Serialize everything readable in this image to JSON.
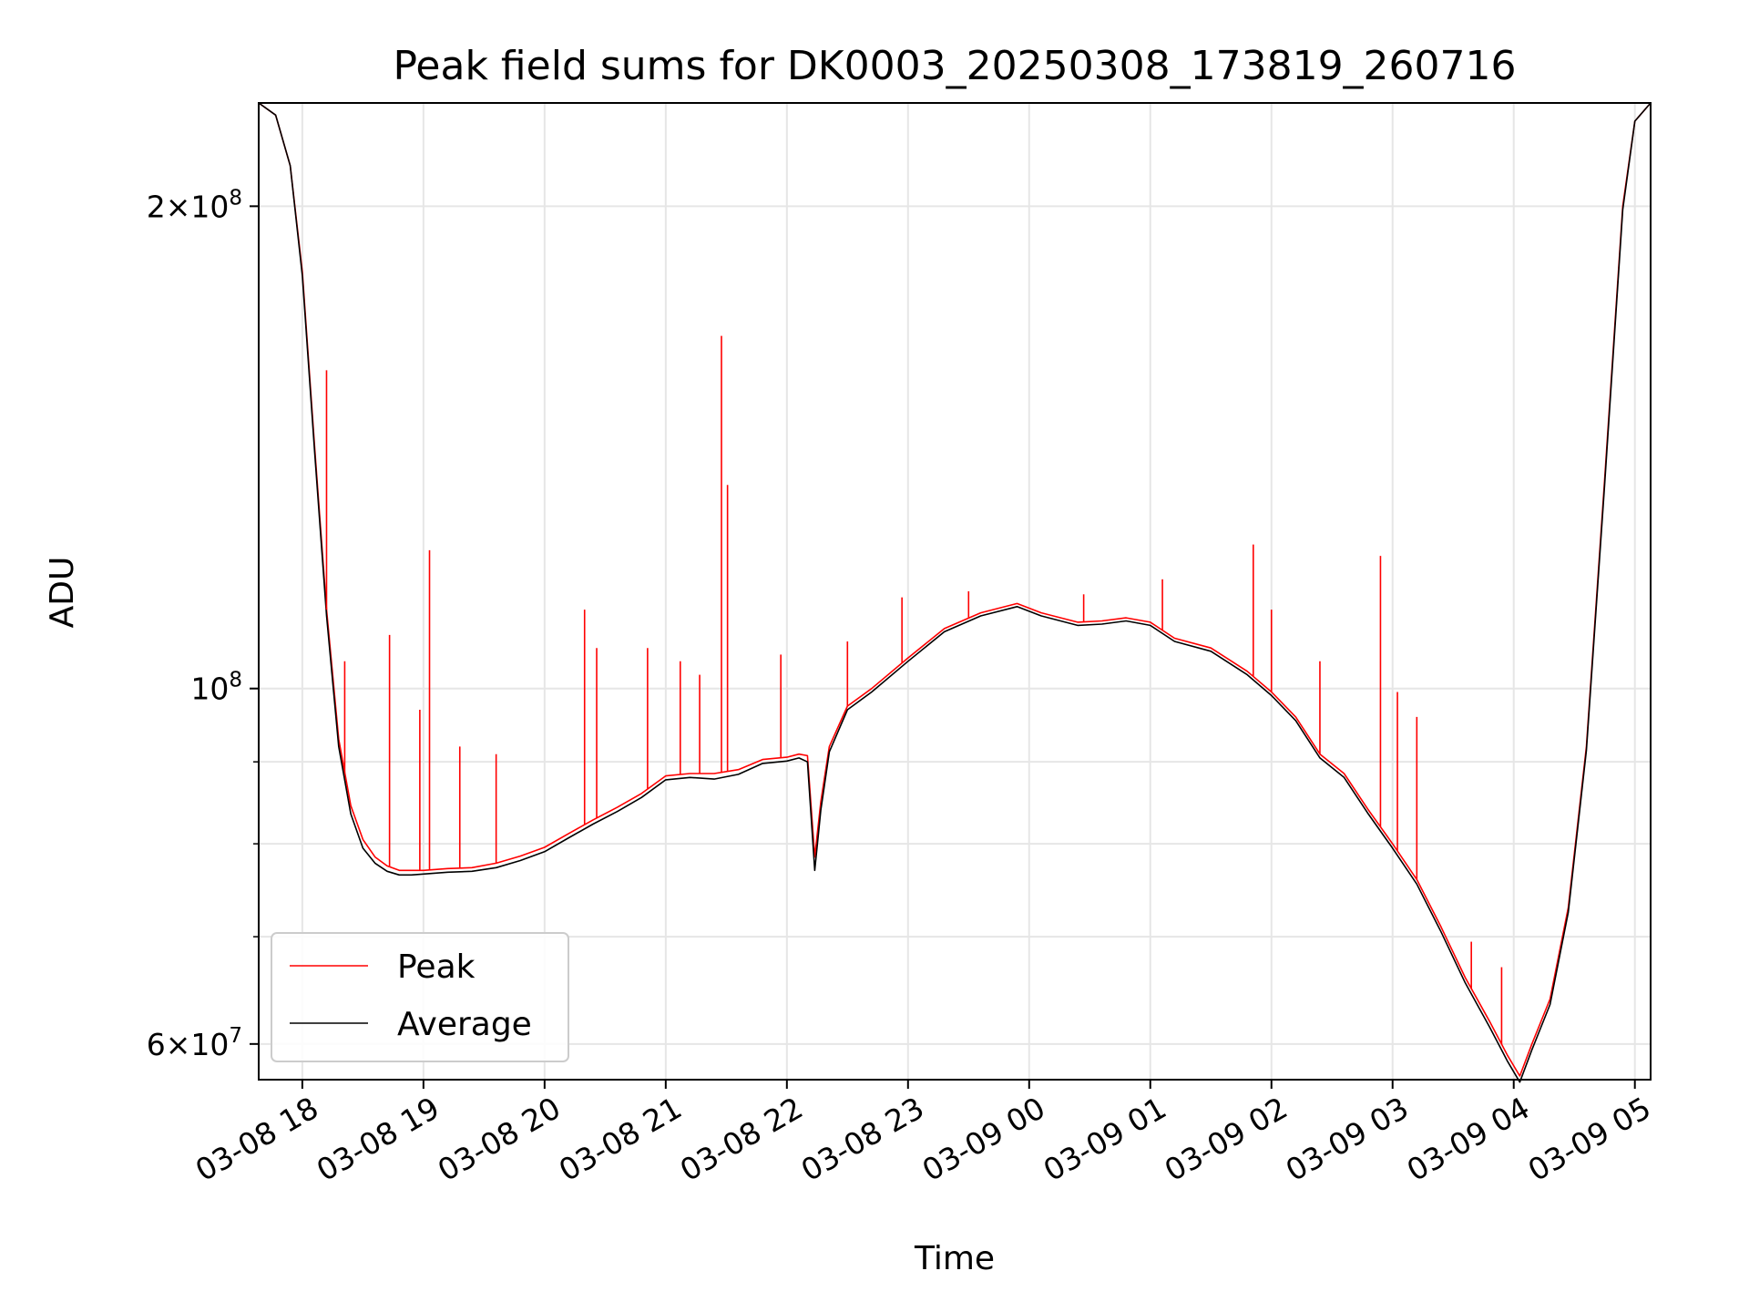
{
  "chart_data": {
    "type": "line",
    "title": "Peak field sums for DK0003_20250308_173819_260716",
    "xlabel": "Time",
    "ylabel": "ADU",
    "yscale": "log",
    "ylim": [
      57000000,
      232000000
    ],
    "xlim_hours": [
      17.64,
      29.13
    ],
    "grid": true,
    "legend_position": "lower-left",
    "x_ticks": [
      {
        "h": 18,
        "label": "03-08 18"
      },
      {
        "h": 19,
        "label": "03-08 19"
      },
      {
        "h": 20,
        "label": "03-08 20"
      },
      {
        "h": 21,
        "label": "03-08 21"
      },
      {
        "h": 22,
        "label": "03-08 22"
      },
      {
        "h": 23,
        "label": "03-08 23"
      },
      {
        "h": 24,
        "label": "03-09 00"
      },
      {
        "h": 25,
        "label": "03-09 01"
      },
      {
        "h": 26,
        "label": "03-09 02"
      },
      {
        "h": 27,
        "label": "03-09 03"
      },
      {
        "h": 28,
        "label": "03-09 04"
      },
      {
        "h": 29,
        "label": "03-09 05"
      }
    ],
    "y_major_ticks": [
      {
        "v": 100000000,
        "base": "10",
        "exp": "8"
      },
      {
        "v": 200000000,
        "base": "2×10",
        "exp": "8"
      },
      {
        "v": 60000000,
        "base": "6×10",
        "exp": "7"
      }
    ],
    "y_minor_ticks": [
      70000000,
      80000000,
      90000000
    ],
    "x_minor_grid": [],
    "series": [
      {
        "name": "Peak",
        "color": "#ff0000",
        "x": [
          17.64,
          17.78,
          17.9,
          18.0,
          18.1,
          18.2,
          18.3,
          18.4,
          18.5,
          18.6,
          18.7,
          18.8,
          18.9,
          19.0,
          19.2,
          19.4,
          19.6,
          19.8,
          20.0,
          20.2,
          20.4,
          20.6,
          20.8,
          21.0,
          21.2,
          21.4,
          21.6,
          21.8,
          22.0,
          22.1,
          22.17,
          22.23,
          22.28,
          22.35,
          22.5,
          22.7,
          23.0,
          23.3,
          23.6,
          23.9,
          24.1,
          24.4,
          24.6,
          24.8,
          25.0,
          25.2,
          25.5,
          25.8,
          26.0,
          26.2,
          26.4,
          26.6,
          26.8,
          27.0,
          27.2,
          27.4,
          27.6,
          27.8,
          27.95,
          28.05,
          28.15,
          28.3,
          28.45,
          28.6,
          28.75,
          28.9,
          29.0,
          29.13
        ],
        "y": [
          232000000,
          228000000,
          212000000,
          182000000,
          142000000,
          112000000,
          93000000,
          84500000,
          80500000,
          78500000,
          77500000,
          77000000,
          77000000,
          77000000,
          77200000,
          77300000,
          77800000,
          78600000,
          79600000,
          81200000,
          82800000,
          84300000,
          86000000,
          88200000,
          88500000,
          88500000,
          89000000,
          90300000,
          90600000,
          91000000,
          90800000,
          78500000,
          85000000,
          92000000,
          97500000,
          100000000,
          104500000,
          109000000,
          111500000,
          113000000,
          111500000,
          110000000,
          110200000,
          110700000,
          110000000,
          107500000,
          106000000,
          102500000,
          99500000,
          96000000,
          91000000,
          88500000,
          84000000,
          80000000,
          76000000,
          71000000,
          66000000,
          62000000,
          59000000,
          57300000,
          60000000,
          64000000,
          73000000,
          92000000,
          135000000,
          200000000,
          226000000,
          232000000
        ]
      },
      {
        "name": "Average",
        "color": "#000000",
        "x": [
          17.64,
          17.78,
          17.9,
          18.0,
          18.1,
          18.2,
          18.3,
          18.4,
          18.5,
          18.6,
          18.7,
          18.8,
          18.9,
          19.0,
          19.2,
          19.4,
          19.6,
          19.8,
          20.0,
          20.2,
          20.4,
          20.6,
          20.8,
          21.0,
          21.2,
          21.4,
          21.6,
          21.8,
          22.0,
          22.1,
          22.17,
          22.23,
          22.28,
          22.35,
          22.5,
          22.7,
          23.0,
          23.3,
          23.6,
          23.9,
          24.1,
          24.4,
          24.6,
          24.8,
          25.0,
          25.2,
          25.5,
          25.8,
          26.0,
          26.2,
          26.4,
          26.6,
          26.8,
          27.0,
          27.2,
          27.4,
          27.6,
          27.8,
          27.95,
          28.05,
          28.15,
          28.3,
          28.45,
          28.6,
          28.75,
          28.9,
          29.0,
          29.13
        ],
        "y": [
          232000000,
          228000000,
          212000000,
          181000000,
          141000000,
          111000000,
          92000000,
          83500000,
          79500000,
          77800000,
          76900000,
          76500000,
          76500000,
          76600000,
          76800000,
          76900000,
          77300000,
          78100000,
          79100000,
          80700000,
          82300000,
          83800000,
          85500000,
          87700000,
          88000000,
          87800000,
          88400000,
          89800000,
          90100000,
          90500000,
          90000000,
          77000000,
          84000000,
          91300000,
          97000000,
          99500000,
          104000000,
          108500000,
          111000000,
          112500000,
          111000000,
          109500000,
          109700000,
          110200000,
          109500000,
          107000000,
          105500000,
          102000000,
          99000000,
          95500000,
          90500000,
          88000000,
          83500000,
          79500000,
          75500000,
          70500000,
          65500000,
          61500000,
          58500000,
          56800000,
          59500000,
          63500000,
          72500000,
          91500000,
          134000000,
          199000000,
          226000000,
          232000000
        ]
      }
    ],
    "spikes": [
      {
        "x": 18.2,
        "y": 158000000
      },
      {
        "x": 18.35,
        "y": 104000000
      },
      {
        "x": 18.72,
        "y": 108000000
      },
      {
        "x": 18.97,
        "y": 97000000
      },
      {
        "x": 19.05,
        "y": 122000000
      },
      {
        "x": 19.3,
        "y": 92000000
      },
      {
        "x": 19.6,
        "y": 91000000
      },
      {
        "x": 20.33,
        "y": 112000000
      },
      {
        "x": 20.43,
        "y": 106000000
      },
      {
        "x": 20.85,
        "y": 106000000
      },
      {
        "x": 21.12,
        "y": 104000000
      },
      {
        "x": 21.28,
        "y": 102000000
      },
      {
        "x": 21.46,
        "y": 166000000
      },
      {
        "x": 21.51,
        "y": 134000000
      },
      {
        "x": 21.95,
        "y": 105000000
      },
      {
        "x": 22.5,
        "y": 107000000
      },
      {
        "x": 22.95,
        "y": 114000000
      },
      {
        "x": 23.5,
        "y": 115000000
      },
      {
        "x": 24.45,
        "y": 114500000
      },
      {
        "x": 25.1,
        "y": 117000000
      },
      {
        "x": 25.85,
        "y": 123000000
      },
      {
        "x": 26.0,
        "y": 112000000
      },
      {
        "x": 26.4,
        "y": 104000000
      },
      {
        "x": 26.9,
        "y": 121000000
      },
      {
        "x": 27.04,
        "y": 99500000
      },
      {
        "x": 27.2,
        "y": 96000000
      },
      {
        "x": 27.65,
        "y": 69500000
      },
      {
        "x": 27.9,
        "y": 67000000
      }
    ]
  }
}
